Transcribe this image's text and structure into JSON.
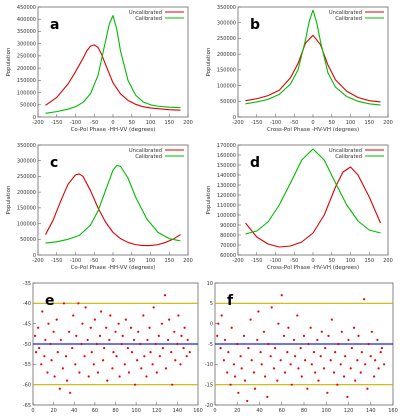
{
  "chart_data": [
    {
      "panel_label": "a",
      "type": "line",
      "xlabel": "Co-Pol Phase -HH-VV (degrees)",
      "ylabel": "Population",
      "xlim": [
        -200,
        200
      ],
      "ylim": [
        0,
        450000
      ],
      "xticks": [
        -200,
        -150,
        -100,
        -50,
        0,
        50,
        100,
        150,
        200
      ],
      "yticks": [
        0,
        50000,
        100000,
        150000,
        200000,
        250000,
        300000,
        350000,
        400000,
        450000
      ],
      "legend_position": "top-right",
      "series": [
        {
          "name": "Uncalibrated",
          "color": "#dd0000",
          "x": [
            -180,
            -150,
            -120,
            -100,
            -80,
            -70,
            -60,
            -50,
            -40,
            -30,
            -20,
            0,
            20,
            40,
            60,
            80,
            100,
            120,
            150,
            180
          ],
          "values": [
            48000,
            80000,
            135000,
            185000,
            240000,
            270000,
            290000,
            295000,
            285000,
            255000,
            215000,
            140000,
            95000,
            68000,
            52000,
            42000,
            37000,
            34000,
            30000,
            28000
          ]
        },
        {
          "name": "Calibrated",
          "color": "#00bb00",
          "x": [
            -180,
            -150,
            -120,
            -100,
            -80,
            -60,
            -40,
            -20,
            -10,
            0,
            10,
            20,
            40,
            60,
            80,
            100,
            120,
            150,
            180
          ],
          "values": [
            15000,
            22000,
            32000,
            42000,
            60000,
            95000,
            170000,
            310000,
            380000,
            415000,
            360000,
            270000,
            150000,
            90000,
            62000,
            50000,
            44000,
            40000,
            38000
          ]
        }
      ]
    },
    {
      "panel_label": "b",
      "type": "line",
      "xlabel": "Cross-Pol Phase -HV-VH (degrees)",
      "ylabel": "Population",
      "xlim": [
        -200,
        200
      ],
      "ylim": [
        0,
        350000
      ],
      "xticks": [
        -200,
        -150,
        -100,
        -50,
        0,
        50,
        100,
        150,
        200
      ],
      "yticks": [
        0,
        50000,
        100000,
        150000,
        200000,
        250000,
        300000,
        350000
      ],
      "legend_position": "top-right",
      "series": [
        {
          "name": "Uncalibrated",
          "color": "#dd0000",
          "x": [
            -180,
            -150,
            -120,
            -90,
            -60,
            -40,
            -20,
            0,
            20,
            40,
            60,
            90,
            120,
            150,
            180
          ],
          "values": [
            52000,
            58000,
            68000,
            85000,
            125000,
            170000,
            235000,
            260000,
            230000,
            165000,
            118000,
            82000,
            62000,
            52000,
            48000
          ]
        },
        {
          "name": "Calibrated",
          "color": "#00bb00",
          "x": [
            -180,
            -150,
            -120,
            -90,
            -60,
            -40,
            -20,
            -10,
            0,
            10,
            20,
            40,
            60,
            90,
            120,
            150,
            180
          ],
          "values": [
            42000,
            48000,
            56000,
            72000,
            105000,
            150000,
            245000,
            305000,
            340000,
            300000,
            240000,
            140000,
            95000,
            65000,
            50000,
            42000,
            38000
          ]
        }
      ]
    },
    {
      "panel_label": "c",
      "type": "line",
      "xlabel": "Co-Pol Phase -HH-VV (degrees)",
      "ylabel": "Population",
      "xlim": [
        -200,
        200
      ],
      "ylim": [
        0,
        350000
      ],
      "xticks": [
        -200,
        -150,
        -100,
        -50,
        0,
        50,
        100,
        150,
        200
      ],
      "yticks": [
        0,
        50000,
        100000,
        150000,
        200000,
        250000,
        300000,
        350000
      ],
      "legend_position": "top-right",
      "series": [
        {
          "name": "Uncalibrated",
          "color": "#dd0000",
          "x": [
            -180,
            -160,
            -140,
            -120,
            -100,
            -90,
            -80,
            -60,
            -40,
            -20,
            0,
            20,
            40,
            60,
            80,
            100,
            120,
            140,
            160,
            180
          ],
          "values": [
            65000,
            110000,
            170000,
            225000,
            255000,
            258000,
            250000,
            205000,
            150000,
            105000,
            72000,
            52000,
            40000,
            33000,
            30000,
            30000,
            33000,
            40000,
            50000,
            65000
          ]
        },
        {
          "name": "Calibrated",
          "color": "#00bb00",
          "x": [
            -180,
            -150,
            -120,
            -90,
            -60,
            -40,
            -20,
            0,
            10,
            20,
            40,
            60,
            90,
            120,
            150,
            180
          ],
          "values": [
            38000,
            42000,
            50000,
            62000,
            95000,
            140000,
            205000,
            270000,
            285000,
            282000,
            245000,
            185000,
            115000,
            72000,
            52000,
            45000
          ]
        }
      ]
    },
    {
      "panel_label": "d",
      "type": "line",
      "xlabel": "Cross-Pol Phase -HV-VH (degrees)",
      "ylabel": "Population",
      "xlim": [
        -200,
        200
      ],
      "ylim": [
        60000,
        170000
      ],
      "xticks": [
        -200,
        -150,
        -100,
        -50,
        0,
        50,
        100,
        150,
        200
      ],
      "yticks": [
        60000,
        70000,
        80000,
        90000,
        100000,
        110000,
        120000,
        130000,
        140000,
        150000,
        160000,
        170000
      ],
      "legend_position": "top-right",
      "series": [
        {
          "name": "Uncalibrated",
          "color": "#dd0000",
          "x": [
            -180,
            -150,
            -120,
            -90,
            -60,
            -30,
            0,
            30,
            60,
            80,
            100,
            120,
            150,
            180
          ],
          "values": [
            92000,
            78000,
            71000,
            68000,
            69000,
            73000,
            82000,
            100000,
            128000,
            143000,
            148000,
            140000,
            118000,
            92000
          ]
        },
        {
          "name": "Calibrated",
          "color": "#00bb00",
          "x": [
            -180,
            -150,
            -120,
            -90,
            -60,
            -30,
            0,
            30,
            60,
            90,
            120,
            150,
            180
          ],
          "values": [
            81000,
            84000,
            93000,
            110000,
            132000,
            155000,
            166000,
            155000,
            132000,
            110000,
            94000,
            85000,
            82000
          ]
        }
      ]
    },
    {
      "panel_label": "e",
      "type": "scatter",
      "xlim": [
        0,
        160
      ],
      "ylim": [
        -65,
        -35
      ],
      "xticks": [
        0,
        20,
        40,
        60,
        80,
        100,
        120,
        140,
        160
      ],
      "yticks": [
        -65,
        -60,
        -55,
        -50,
        -45,
        -40,
        -35
      ],
      "marker_color": "#ee0000",
      "reference_lines": [
        {
          "y": -40,
          "color": "#c8b400"
        },
        {
          "y": -50,
          "color": "#2222dd"
        },
        {
          "y": -60,
          "color": "#c8b400"
        }
      ],
      "series": [
        {
          "x": [
            2,
            3,
            5,
            6,
            8,
            9,
            11,
            12,
            14,
            15,
            17,
            18,
            20,
            21,
            23,
            24,
            26,
            27,
            29,
            30,
            32,
            33,
            35,
            36,
            38,
            39,
            41,
            42,
            44,
            45,
            47,
            48,
            50,
            51,
            53,
            54,
            56,
            57,
            59,
            60,
            62,
            63,
            65,
            66,
            68,
            69,
            71,
            72,
            74,
            75,
            77,
            78,
            80,
            81,
            83,
            84,
            86,
            87,
            89,
            90,
            92,
            93,
            95,
            96,
            98,
            99,
            101,
            102,
            104,
            105,
            107,
            108,
            110,
            111,
            113,
            114,
            116,
            117,
            119,
            120,
            122,
            123,
            125,
            126,
            128,
            129,
            131,
            132,
            134,
            135,
            137,
            138,
            140,
            141,
            143,
            144,
            146,
            147,
            149,
            150,
            152
          ],
          "values": [
            -48,
            -52,
            -46,
            -51,
            -55,
            -42,
            -53,
            -49,
            -57,
            -45,
            -50,
            -54,
            -47,
            -58,
            -44,
            -52,
            -61,
            -49,
            -56,
            -40,
            -53,
            -59,
            -47,
            -62,
            -51,
            -43,
            -55,
            -48,
            -40,
            -57,
            -50,
            -45,
            -53,
            -41,
            -49,
            -58,
            -46,
            -52,
            -55,
            -44,
            -50,
            -57,
            -48,
            -42,
            -54,
            -51,
            -46,
            -59,
            -49,
            -43,
            -56,
            -52,
            -47,
            -53,
            -45,
            -58,
            -50,
            -48,
            -55,
            -44,
            -51,
            -57,
            -46,
            -52,
            -49,
            -60,
            -54,
            -47,
            -50,
            -56,
            -43,
            -53,
            -58,
            -49,
            -46,
            -52,
            -55,
            -41,
            -50,
            -57,
            -48,
            -53,
            -45,
            -51,
            -38,
            -56,
            -49,
            -44,
            -52,
            -60,
            -47,
            -54,
            -50,
            -43,
            -55,
            -48,
            -51,
            -46,
            -53,
            -49,
            -52
          ]
        }
      ]
    },
    {
      "panel_label": "f",
      "type": "scatter",
      "xlim": [
        0,
        160
      ],
      "ylim": [
        -20,
        10
      ],
      "xticks": [
        0,
        20,
        40,
        60,
        80,
        100,
        120,
        140,
        160
      ],
      "yticks": [
        -20,
        -15,
        -10,
        -5,
        0,
        5,
        10
      ],
      "marker_color": "#ee0000",
      "reference_lines": [
        {
          "y": 5,
          "color": "#c8b400"
        },
        {
          "y": -5,
          "color": "#2222dd"
        },
        {
          "y": -15,
          "color": "#c8b400"
        }
      ],
      "series": [
        {
          "x": [
            2,
            3,
            5,
            6,
            8,
            9,
            11,
            12,
            14,
            15,
            17,
            18,
            20,
            21,
            23,
            24,
            26,
            27,
            29,
            30,
            32,
            33,
            35,
            36,
            38,
            39,
            41,
            42,
            44,
            45,
            47,
            48,
            50,
            51,
            53,
            54,
            56,
            57,
            59,
            60,
            62,
            63,
            65,
            66,
            68,
            69,
            71,
            72,
            74,
            75,
            77,
            78,
            80,
            81,
            83,
            84,
            86,
            87,
            89,
            90,
            92,
            93,
            95,
            96,
            98,
            99,
            101,
            102,
            104,
            105,
            107,
            108,
            110,
            111,
            113,
            114,
            116,
            117,
            119,
            120,
            122,
            123,
            125,
            126,
            128,
            129,
            131,
            132,
            134,
            135,
            137,
            138,
            140,
            141,
            143,
            144,
            146,
            147,
            149,
            150,
            152
          ],
          "values": [
            -3,
            0,
            -6,
            2,
            -9,
            -4,
            -12,
            -7,
            -15,
            -1,
            -10,
            -13,
            -5,
            -17,
            -8,
            -11,
            -3,
            -14,
            -19,
            -6,
            1,
            -9,
            -12,
            -16,
            -4,
            3,
            -7,
            -10,
            -2,
            -13,
            -18,
            -5,
            -8,
            4,
            -11,
            -6,
            -14,
            0,
            -9,
            7,
            -3,
            -12,
            -7,
            -1,
            -10,
            -15,
            -4,
            -8,
            2,
            -11,
            -6,
            -13,
            -3,
            -9,
            -16,
            -5,
            -1,
            -10,
            -7,
            -12,
            -4,
            -14,
            -8,
            -2,
            -11,
            -6,
            -17,
            -3,
            -9,
            1,
            -12,
            -7,
            -15,
            -5,
            -10,
            -2,
            -13,
            -8,
            -18,
            -4,
            -11,
            -6,
            -1,
            -14,
            -9,
            -3,
            -12,
            -7,
            6,
            -10,
            -16,
            -5,
            -8,
            -2,
            -13,
            -9,
            -4,
            -11,
            -7,
            -6,
            -10
          ]
        }
      ]
    }
  ]
}
